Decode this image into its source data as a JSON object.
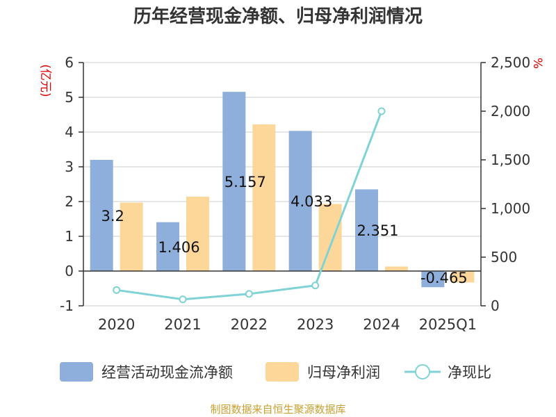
{
  "title": "历年经营现金净额、归母净利润情况",
  "source": "制图数据来自恒生聚源数据库",
  "colors": {
    "operating_cash": "#8eaedb",
    "net_profit": "#fdd79a",
    "ratio_line": "#7fd3d6",
    "grid": "#cccccc",
    "axis": "#333333",
    "unit": "#e00000",
    "source": "#c8a030"
  },
  "chart_data": {
    "type": "bar",
    "title": "历年经营现金净额、归母净利润情况",
    "categories": [
      "2020",
      "2021",
      "2022",
      "2023",
      "2024",
      "2025Q1"
    ],
    "left_axis": {
      "unit": "(亿元)",
      "ylim": [
        -1,
        6
      ],
      "ticks": [
        -1,
        0,
        1,
        2,
        3,
        4,
        5,
        6
      ],
      "tick_labels": [
        "-1",
        "0",
        "1",
        "2",
        "3",
        "4",
        "5",
        "6"
      ]
    },
    "right_axis": {
      "unit": "%",
      "ylim": [
        0,
        2500
      ],
      "ticks": [
        0,
        500,
        1000,
        1500,
        2000,
        2500
      ],
      "tick_labels": [
        "0",
        "500",
        "1,000",
        "1,500",
        "2,000",
        "2,500"
      ]
    },
    "series": [
      {
        "name": "经营活动现金流净额",
        "type": "bar",
        "axis": "left",
        "values": [
          3.2,
          1.406,
          5.157,
          4.033,
          2.351,
          -0.465
        ],
        "labels": [
          "3.2",
          "1.406",
          "5.157",
          "4.033",
          "2.351",
          "-0.465"
        ]
      },
      {
        "name": "归母净利润",
        "type": "bar",
        "axis": "left",
        "values": [
          1.97,
          2.14,
          4.22,
          1.93,
          0.13,
          -0.33
        ]
      },
      {
        "name": "净现比",
        "type": "line",
        "axis": "right",
        "values": [
          162,
          66,
          122,
          209,
          2000,
          null
        ]
      }
    ],
    "grid": true,
    "legend": "bottom"
  }
}
